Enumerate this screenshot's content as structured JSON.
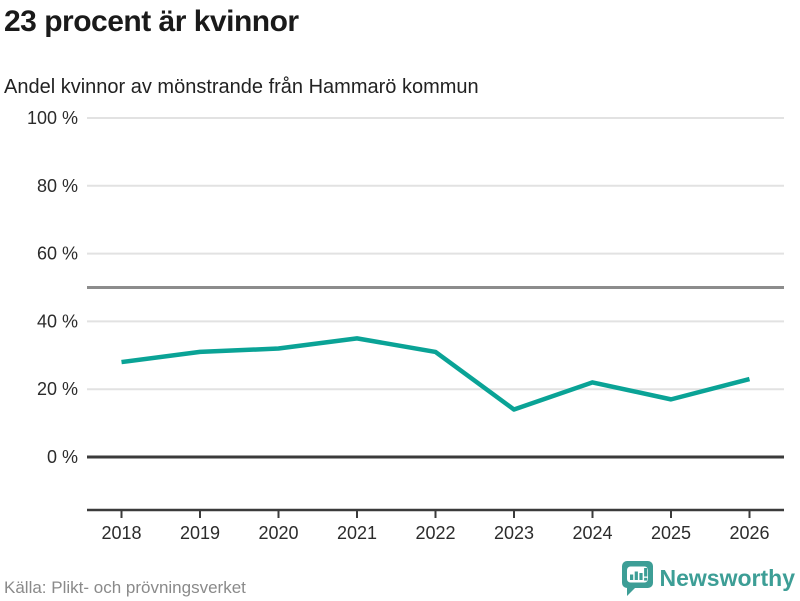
{
  "header": {
    "title": "23 procent är kvinnor",
    "subtitle": "Andel kvinnor av mönstrande från Hammarö kommun"
  },
  "footer": {
    "source": "Källa: Plikt- och prövningsverket",
    "brand": "Newsworthy"
  },
  "colors": {
    "line": "#0aa396",
    "grid": "#e2e2e2",
    "refline": "#8c8c8c",
    "axis": "#3b3b3b",
    "tick_text": "#2b2b2b",
    "brand_teal": "#3d9e96",
    "muted_text": "#8a8a8a"
  },
  "chart_data": {
    "type": "line",
    "title": "23 procent är kvinnor",
    "subtitle": "Andel kvinnor av mönstrande från Hammarö kommun",
    "series_name": "Andel kvinnor av mönstrande (%)",
    "categories": [
      "2018",
      "2019",
      "2020",
      "2021",
      "2022",
      "2023",
      "2024",
      "2025",
      "2026"
    ],
    "values": [
      28,
      31,
      32,
      35,
      31,
      14,
      22,
      17,
      23
    ],
    "xlabel": "",
    "ylabel": "%",
    "ylim": [
      0,
      100
    ],
    "yticks": {
      "values": [
        0,
        20,
        40,
        60,
        80,
        100
      ],
      "labels": [
        "0 %",
        "20 %",
        "40 %",
        "60 %",
        "80 %",
        "100 %"
      ]
    },
    "gridline_values": [
      20,
      40,
      60,
      80,
      100
    ],
    "refline_value": 50,
    "grid": true,
    "legend_position": "none"
  }
}
